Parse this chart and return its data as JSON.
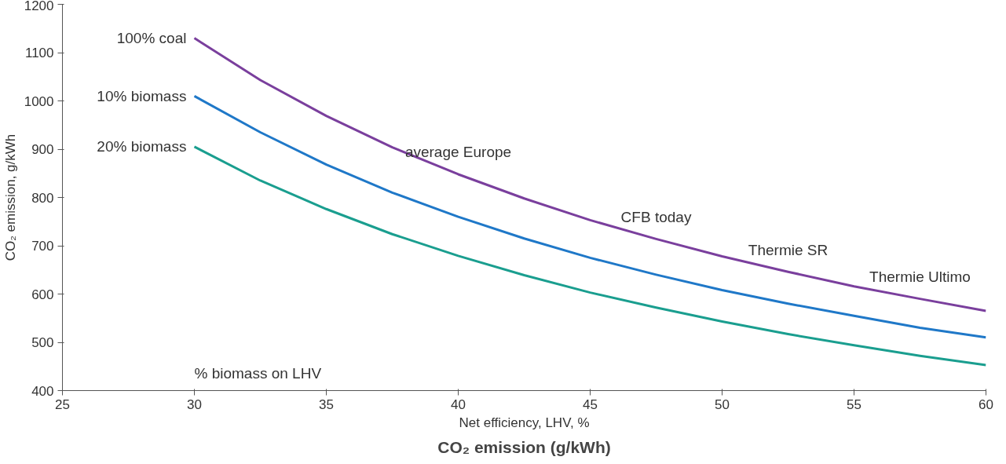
{
  "chart_data": {
    "type": "line",
    "title": "CO₂ emission (g/kWh)",
    "xlabel": "Net efficiency, LHV, %",
    "ylabel": "CO₂ emission, g/kWh",
    "x": [
      30,
      32.5,
      35,
      37.5,
      40,
      42.5,
      45,
      47.5,
      50,
      52.5,
      55,
      57.5,
      60
    ],
    "series": [
      {
        "name": "100% coal",
        "color": "#7a3f9d",
        "values": [
          1130,
          1043,
          969,
          904,
          848,
          798,
          753,
          714,
          678,
          646,
          616,
          590,
          565
        ]
      },
      {
        "name": "10% biomass",
        "color": "#1f78c8",
        "values": [
          1010,
          935,
          868,
          810,
          760,
          715,
          675,
          640,
          608,
          580,
          555,
          530,
          510
        ]
      },
      {
        "name": "20% biomass",
        "color": "#1a9e8f",
        "values": [
          905,
          835,
          776,
          724,
          679,
          639,
          603,
          572,
          543,
          517,
          494,
          472,
          453
        ]
      }
    ],
    "annotations": [
      {
        "text": "average Europe",
        "x": 40,
        "y": 848
      },
      {
        "text": "CFB today",
        "x": 47.5,
        "y": 714
      },
      {
        "text": "Thermie SR",
        "x": 52.5,
        "y": 646
      },
      {
        "text": "Thermie Ultimo",
        "x": 57.5,
        "y": 590
      },
      "% biomass on LHV"
    ],
    "xlim": [
      25,
      60
    ],
    "ylim": [
      400,
      1200
    ],
    "xticks": [
      25,
      30,
      35,
      40,
      45,
      50,
      55,
      60
    ],
    "yticks": [
      400,
      500,
      600,
      700,
      800,
      900,
      1000,
      1100,
      1200
    ],
    "grid": false,
    "legend": false,
    "marker": "none",
    "line_style": "solid"
  }
}
